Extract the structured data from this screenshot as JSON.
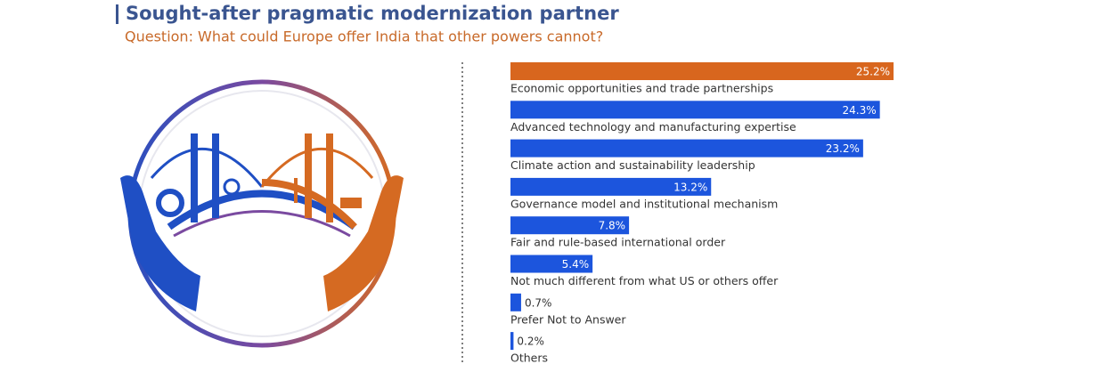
{
  "chart_data": {
    "type": "bar",
    "orientation": "horizontal",
    "title": "Sought-after pragmatic modernization partner",
    "subtitle": "Question: What could Europe offer India that other powers cannot?",
    "categories": [
      "Economic opportunities and trade partnerships",
      "Advanced technology and manufacturing expertise",
      "Climate action and sustainability leadership",
      "Governance model and institutional mechanism",
      "Fair and rule-based international order",
      "Not much different from what US or others offer",
      "Prefer Not to Answer",
      "Others"
    ],
    "values": [
      25.2,
      24.3,
      23.2,
      13.2,
      7.8,
      5.4,
      0.7,
      0.2
    ],
    "value_labels": [
      "25.2%",
      "24.3%",
      "23.2%",
      "13.2%",
      "7.8%",
      "5.4%",
      "0.7%",
      "0.2%"
    ],
    "colors": [
      "#d8661e",
      "#1c55dd",
      "#1c55dd",
      "#1c55dd",
      "#1c55dd",
      "#1c55dd",
      "#1c55dd",
      "#1c55dd"
    ]
  }
}
